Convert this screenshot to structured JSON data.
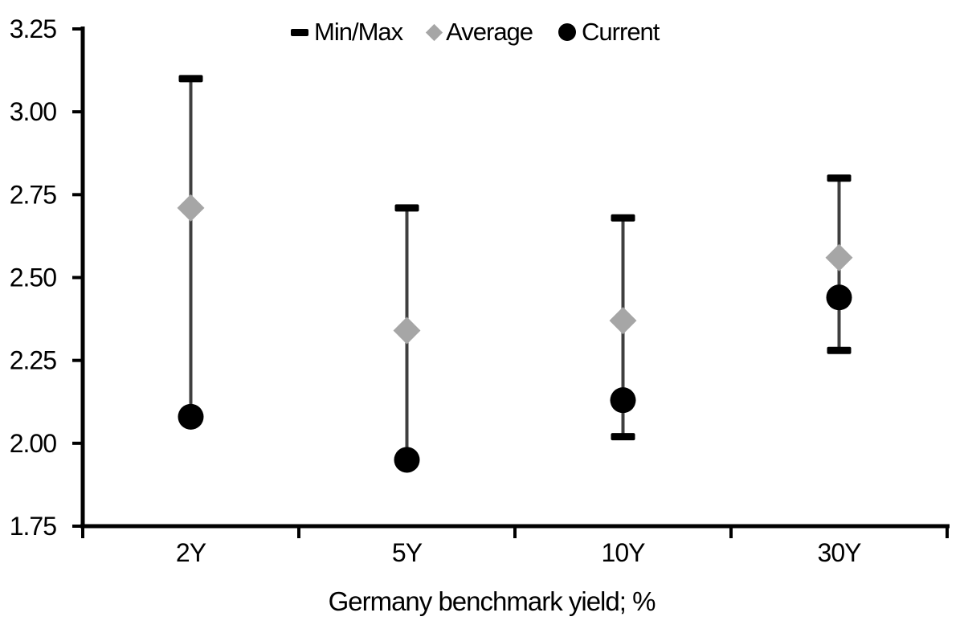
{
  "figure": {
    "background": "#FFFFFF"
  },
  "legend": {
    "items": [
      {
        "label": "Min/Max",
        "marker": "dash-icon",
        "color": "#000000"
      },
      {
        "label": "Average",
        "marker": "diamond-icon",
        "color": "#A6A6A6"
      },
      {
        "label": "Current",
        "marker": "circle-icon",
        "color": "#000000"
      }
    ]
  },
  "chart_data": {
    "type": "scatter",
    "subtype": "min-max-range",
    "title": "",
    "xlabel": "Germany benchmark yield; %",
    "ylabel": "",
    "categories": [
      "2Y",
      "5Y",
      "10Y",
      "30Y"
    ],
    "series": [
      {
        "name": "Min/Max",
        "type": "range",
        "min": [
          2.08,
          1.95,
          2.02,
          2.28
        ],
        "max": [
          3.1,
          2.71,
          2.68,
          2.8
        ]
      },
      {
        "name": "Average",
        "type": "point",
        "marker": "diamond",
        "values": [
          2.71,
          2.34,
          2.37,
          2.56
        ]
      },
      {
        "name": "Current",
        "type": "point",
        "marker": "circle",
        "values": [
          2.08,
          1.95,
          2.13,
          2.44
        ]
      }
    ],
    "ylim": [
      1.75,
      3.25
    ],
    "ytick_step": 0.25,
    "ytick_labels": [
      "3.25",
      "3.00",
      "2.75",
      "2.50",
      "2.25",
      "2.00",
      "1.75"
    ],
    "grid": false,
    "legend_position": "top-center"
  },
  "colors": {
    "axis": "#000000",
    "stem": "#3F3F3F",
    "cap": "#000000",
    "average": "#A6A6A6",
    "current": "#000000",
    "background": "#FFFFFF"
  }
}
